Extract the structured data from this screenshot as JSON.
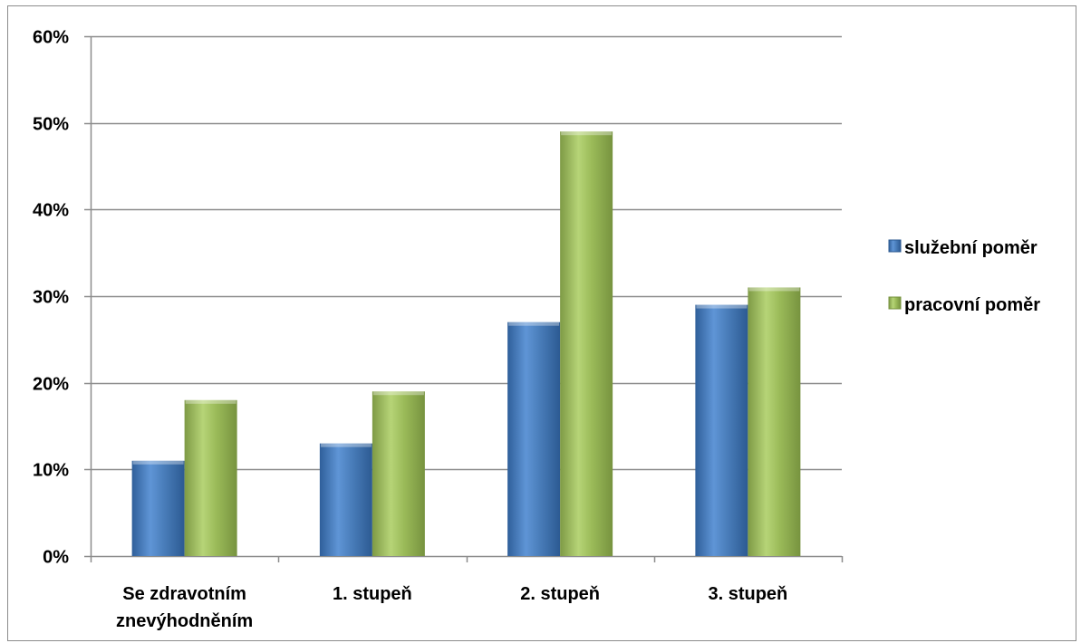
{
  "chart_data": {
    "type": "bar",
    "title": "",
    "xlabel": "",
    "ylabel": "",
    "categories": [
      [
        "Se zdravotním",
        "znevýhodněním"
      ],
      [
        "1. stupeň"
      ],
      [
        "2. stupeň"
      ],
      [
        "3. stupeň"
      ]
    ],
    "series": [
      {
        "name": "služební poměr",
        "values": [
          11,
          13,
          27,
          29
        ],
        "color": "#4a7ebb"
      },
      {
        "name": "pracovní poměr",
        "values": [
          18,
          19,
          49,
          31
        ],
        "color": "#9bbb59"
      }
    ],
    "ylim": [
      0,
      60
    ],
    "y_tick_step": 10,
    "y_tick_format": "percent",
    "grid": true,
    "legend_position": "right"
  }
}
